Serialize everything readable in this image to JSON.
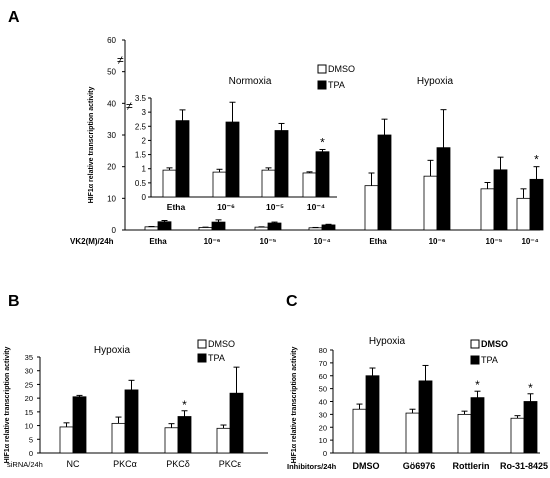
{
  "chart_data": [
    {
      "type": "bar",
      "panel_label": "A",
      "ylabel": "HIF1α relative transcription activity",
      "xlabel": "VK2(M)/24h",
      "yticks": [
        "0",
        "10",
        "20",
        "30",
        "40",
        "50",
        "60"
      ],
      "ylim": [
        0,
        60
      ],
      "axis_break_mark": "≠",
      "group_titles": [
        "Normoxia",
        "Hypoxia"
      ],
      "categories": [
        "Etha",
        "10⁻⁶",
        "10⁻⁵",
        "10⁻⁴",
        "Etha",
        "10⁻⁶",
        "10⁻⁵",
        "10⁻⁴"
      ],
      "legend": [
        "DMSO",
        "TPA"
      ],
      "series": [
        {
          "name": "DMSO",
          "color": "#ffffff",
          "values": [
            1,
            0.8,
            0.9,
            0.7,
            14,
            17,
            13,
            10
          ],
          "errors": [
            0.1,
            0.1,
            0.1,
            0.1,
            4,
            5,
            2,
            3
          ]
        },
        {
          "name": "TPA",
          "color": "#000000",
          "values": [
            2.6,
            2.5,
            2.2,
            1.6,
            30,
            26,
            19,
            16
          ],
          "errors": [
            0.4,
            0.7,
            0.3,
            0.2,
            5,
            12,
            4,
            4
          ]
        }
      ],
      "significance": [
        "",
        "",
        "",
        "",
        "",
        "",
        "",
        "*"
      ],
      "inset": {
        "yticks": [
          "0",
          "0.5",
          "1",
          "1.5",
          "2",
          "2.5",
          "3",
          "3.5"
        ],
        "ylim": [
          0,
          3.5
        ],
        "axis_break_mark": "≠",
        "categories": [
          "Etha",
          "10⁻⁶",
          "10⁻⁵",
          "10⁻⁴"
        ],
        "series": [
          {
            "name": "DMSO",
            "color": "#ffffff",
            "values": [
              0.95,
              0.88,
              0.95,
              0.85
            ],
            "errors": [
              0.08,
              0.1,
              0.08,
              0.04
            ]
          },
          {
            "name": "TPA",
            "color": "#000000",
            "values": [
              2.7,
              2.65,
              2.35,
              1.6
            ],
            "errors": [
              0.38,
              0.7,
              0.25,
              0.08
            ]
          }
        ],
        "significance": [
          "",
          "",
          "",
          "*"
        ]
      }
    },
    {
      "type": "bar",
      "panel_label": "B",
      "title": "Hypoxia",
      "ylabel": "HIF1α relative transcription activity",
      "xlabel": "siRNA/24h",
      "yticks": [
        "0",
        "5",
        "10",
        "15",
        "20",
        "25",
        "30",
        "35"
      ],
      "ylim": [
        0,
        35
      ],
      "categories": [
        "NC",
        "PKCα",
        "PKCδ",
        "PKCε"
      ],
      "legend": [
        "DMSO",
        "TPA"
      ],
      "series": [
        {
          "name": "DMSO",
          "color": "#ffffff",
          "values": [
            9.5,
            10.8,
            9.2,
            9
          ],
          "errors": [
            1.5,
            2.3,
            1.5,
            1.2
          ]
        },
        {
          "name": "TPA",
          "color": "#000000",
          "values": [
            20.5,
            23,
            13.3,
            21.8
          ],
          "errors": [
            0.5,
            3.5,
            2.1,
            9.5
          ]
        }
      ],
      "significance": [
        "",
        "",
        "*",
        ""
      ]
    },
    {
      "type": "bar",
      "panel_label": "C",
      "title": "Hypoxia",
      "ylabel": "HIF1α relative transcription activity",
      "xlabel": "Inhibitors/24h",
      "yticks": [
        "0",
        "10",
        "20",
        "30",
        "40",
        "50",
        "60",
        "70",
        "80"
      ],
      "ylim": [
        0,
        80
      ],
      "categories": [
        "DMSO",
        "Gö6976",
        "Rottlerin",
        "Ro-31-8425"
      ],
      "legend": [
        "DMSO",
        "TPA"
      ],
      "series": [
        {
          "name": "DMSO",
          "color": "#ffffff",
          "values": [
            34,
            31,
            30,
            27
          ],
          "errors": [
            4,
            3,
            2.5,
            2
          ]
        },
        {
          "name": "TPA",
          "color": "#000000",
          "values": [
            60,
            56,
            43,
            40
          ],
          "errors": [
            6,
            12,
            5,
            6
          ]
        }
      ],
      "significance": [
        "",
        "",
        "*",
        "*"
      ]
    }
  ]
}
